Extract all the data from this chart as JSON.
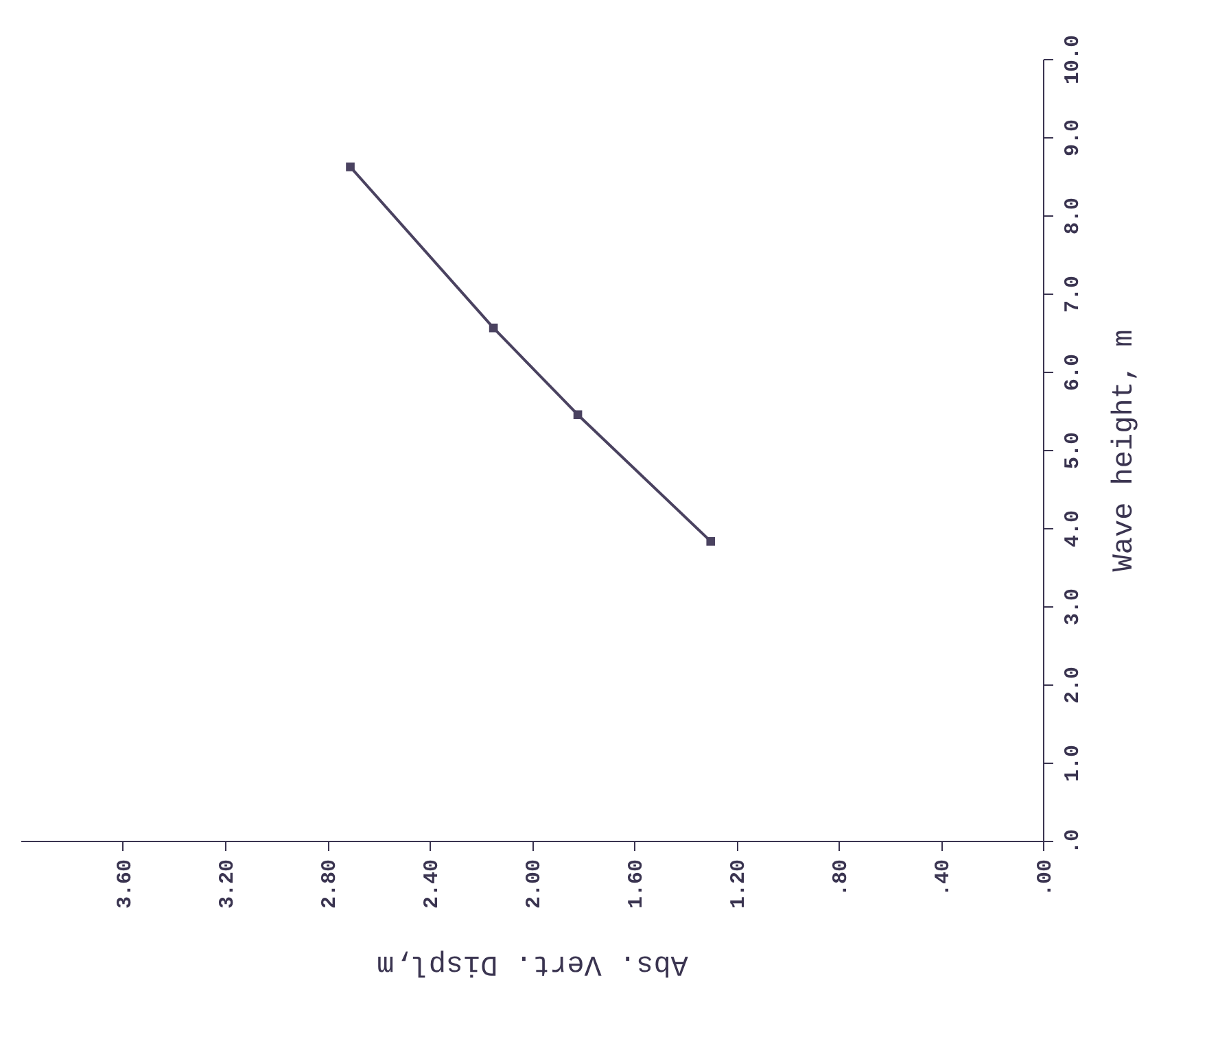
{
  "chart_data": {
    "type": "line",
    "xlabel": "Abs. Vert. Displ,m",
    "ylabel": "Wave height, m",
    "x": [
      2.71,
      2.15,
      1.82,
      1.3
    ],
    "series": [
      {
        "color": "#4a4260",
        "values": [
          8.62,
          6.56,
          5.45,
          3.83
        ]
      }
    ],
    "xlim": [
      4.0,
      0
    ],
    "xticks": [
      {
        "value": 0,
        "label": ".00"
      },
      {
        "value": 0.4,
        "label": ".40"
      },
      {
        "value": 0.8,
        "label": ".80"
      },
      {
        "value": 1.2,
        "label": "1.20"
      },
      {
        "value": 1.6,
        "label": "1.60"
      },
      {
        "value": 2.0,
        "label": "2.00"
      },
      {
        "value": 2.4,
        "label": "2.40"
      },
      {
        "value": 2.8,
        "label": "2.80"
      },
      {
        "value": 3.2,
        "label": "3.20"
      },
      {
        "value": 3.6,
        "label": "3.60"
      }
    ],
    "ylim": [
      0,
      10
    ],
    "yticks": [
      {
        "value": 0,
        "label": ".0"
      },
      {
        "value": 1,
        "label": "1.0"
      },
      {
        "value": 2,
        "label": "2.0"
      },
      {
        "value": 3,
        "label": "3.0"
      },
      {
        "value": 4,
        "label": "4.0"
      },
      {
        "value": 5,
        "label": "5.0"
      },
      {
        "value": 6,
        "label": "6.0"
      },
      {
        "value": 7,
        "label": "7.0"
      },
      {
        "value": 8,
        "label": "8.0"
      },
      {
        "value": 9,
        "label": "9.0"
      },
      {
        "value": 10,
        "label": "10.0"
      }
    ],
    "grid": false,
    "marker": "square",
    "line_style": "solid"
  }
}
